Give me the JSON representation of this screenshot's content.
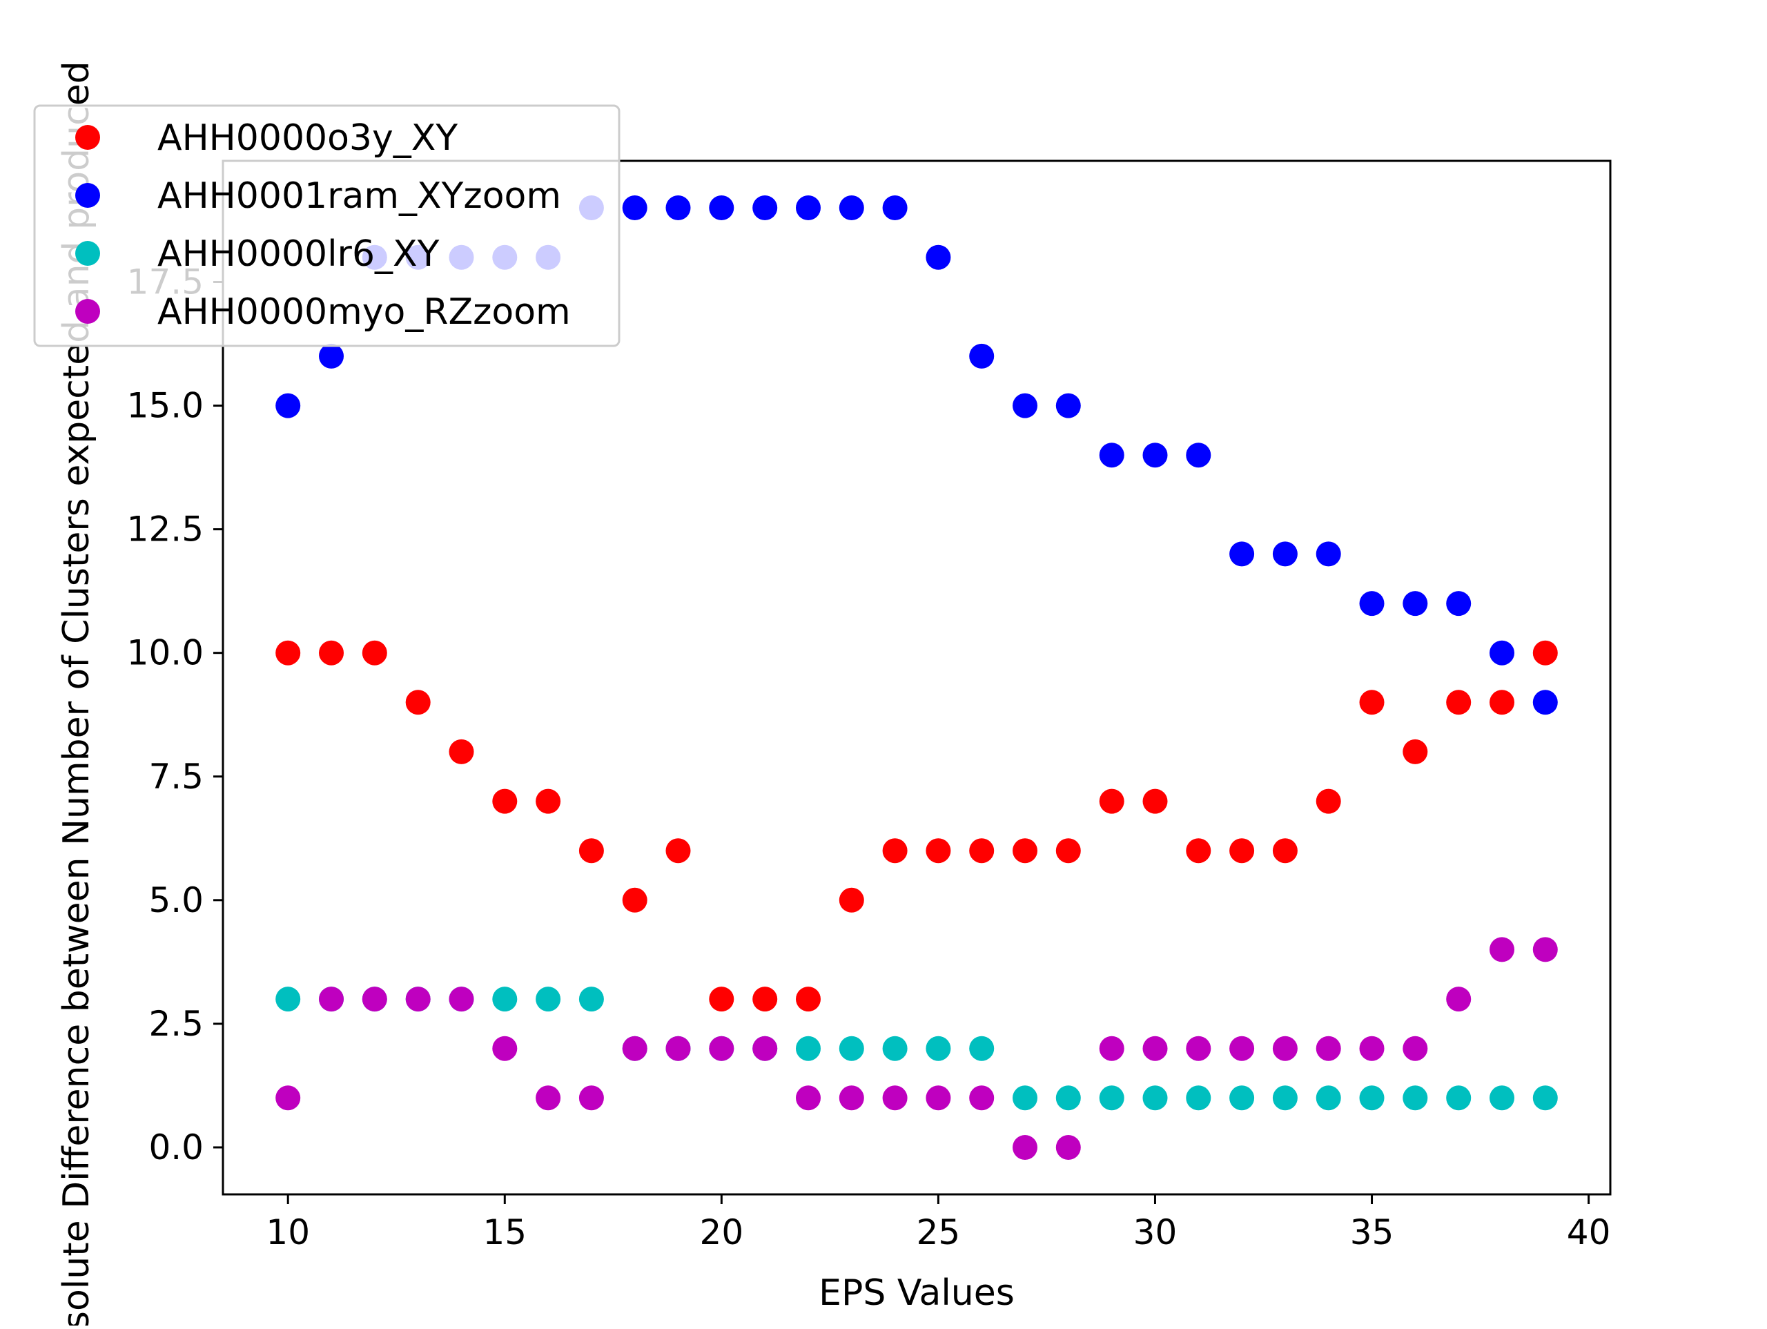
{
  "chart_data": {
    "type": "scatter",
    "title": "",
    "xlabel": "EPS Values",
    "ylabel": "Absolute Difference between Number of Clusters expected and produced",
    "xlim": [
      8.5,
      40.5
    ],
    "ylim": [
      -0.95,
      19.95
    ],
    "xticks": [
      10,
      15,
      20,
      25,
      30,
      35,
      40
    ],
    "xtick_labels": [
      "10",
      "15",
      "20",
      "25",
      "30",
      "35",
      "40"
    ],
    "yticks": [
      0.0,
      2.5,
      5.0,
      7.5,
      10.0,
      12.5,
      15.0,
      17.5
    ],
    "ytick_labels": [
      "0.0",
      "2.5",
      "5.0",
      "7.5",
      "10.0",
      "12.5",
      "15.0",
      "17.5"
    ],
    "grid": false,
    "legend_position": "upper-left",
    "x": [
      10,
      11,
      12,
      13,
      14,
      15,
      16,
      17,
      18,
      19,
      20,
      21,
      22,
      23,
      24,
      25,
      26,
      27,
      28,
      29,
      30,
      31,
      32,
      33,
      34,
      35,
      36,
      37,
      38,
      39
    ],
    "series": [
      {
        "name": "AHH0000o3y_XY",
        "color": "#ff0000",
        "values": [
          10,
          10,
          10,
          9,
          8,
          7,
          7,
          6,
          5,
          6,
          3,
          3,
          3,
          5,
          6,
          6,
          6,
          6,
          6,
          7,
          7,
          6,
          6,
          6,
          7,
          9,
          8,
          9,
          9,
          10
        ]
      },
      {
        "name": "AHH0001ram_XYzoom",
        "color": "#0000ff",
        "values": [
          15,
          16,
          18,
          18,
          18,
          18,
          18,
          19,
          19,
          19,
          19,
          19,
          19,
          19,
          19,
          18,
          16,
          15,
          15,
          14,
          14,
          14,
          12,
          12,
          12,
          11,
          11,
          11,
          10,
          9
        ]
      },
      {
        "name": "AHH0000lr6_XY",
        "color": "#00bfbf",
        "values": [
          3,
          3,
          3,
          3,
          3,
          3,
          3,
          3,
          2,
          2,
          2,
          2,
          2,
          2,
          2,
          2,
          2,
          1,
          1,
          1,
          1,
          1,
          1,
          1,
          1,
          1,
          1,
          1,
          1,
          1
        ]
      },
      {
        "name": "AHH0000myo_RZzoom",
        "color": "#bf00bf",
        "values": [
          1,
          3,
          3,
          3,
          3,
          2,
          1,
          1,
          2,
          2,
          2,
          2,
          1,
          1,
          1,
          1,
          1,
          0,
          0,
          2,
          2,
          2,
          2,
          2,
          2,
          2,
          2,
          3,
          4,
          4
        ]
      }
    ]
  }
}
